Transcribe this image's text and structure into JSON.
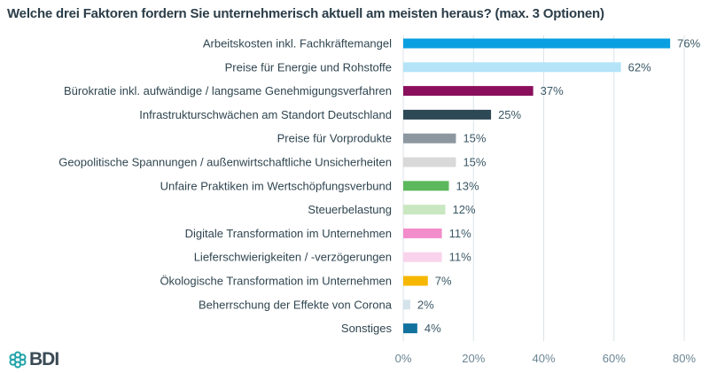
{
  "chart_data": {
    "type": "bar",
    "orientation": "horizontal",
    "title": "Welche drei Faktoren fordern Sie unternehmerisch aktuell am meisten heraus? (max. 3 Optionen)",
    "categories": [
      "Arbeitskosten inkl. Fachkräftemangel",
      "Preise für Energie und Rohstoffe",
      "Bürokratie inkl. aufwändige / langsame Genehmigungsverfahren",
      "Infrastrukturschwächen am Standort Deutschland",
      "Preise für Vorprodukte",
      "Geopolitische Spannungen / außenwirtschaftliche Unsicherheiten",
      "Unfaire Praktiken im Wertschöpfungsverbund",
      "Steuerbelastung",
      "Digitale Transformation im Unternehmen",
      "Lieferschwierigkeiten / -verzögerungen",
      "Ökologische Transformation im Unternehmen",
      "Beherrschung der Effekte von Corona",
      "Sonstiges"
    ],
    "values": [
      76,
      62,
      37,
      25,
      15,
      15,
      13,
      12,
      11,
      11,
      7,
      2,
      4
    ],
    "value_labels": [
      "76%",
      "62%",
      "37%",
      "25%",
      "15%",
      "15%",
      "13%",
      "12%",
      "11%",
      "11%",
      "7%",
      "2%",
      "4%"
    ],
    "colors": [
      "#0a9fe0",
      "#b5e4f8",
      "#8a0f5d",
      "#2e4956",
      "#8d979f",
      "#d9d9d9",
      "#5cb85c",
      "#c9e7c1",
      "#f28ccb",
      "#f9d3eb",
      "#f5b700",
      "#d5e3ea",
      "#11729e"
    ],
    "xlim": [
      0,
      80
    ],
    "xticks": [
      0,
      20,
      40,
      60,
      80
    ],
    "xtick_labels": [
      "0%",
      "20%",
      "40%",
      "60%",
      "80%"
    ],
    "grid": true,
    "xlabel": "",
    "ylabel": ""
  },
  "logo": {
    "text": "BDI"
  }
}
